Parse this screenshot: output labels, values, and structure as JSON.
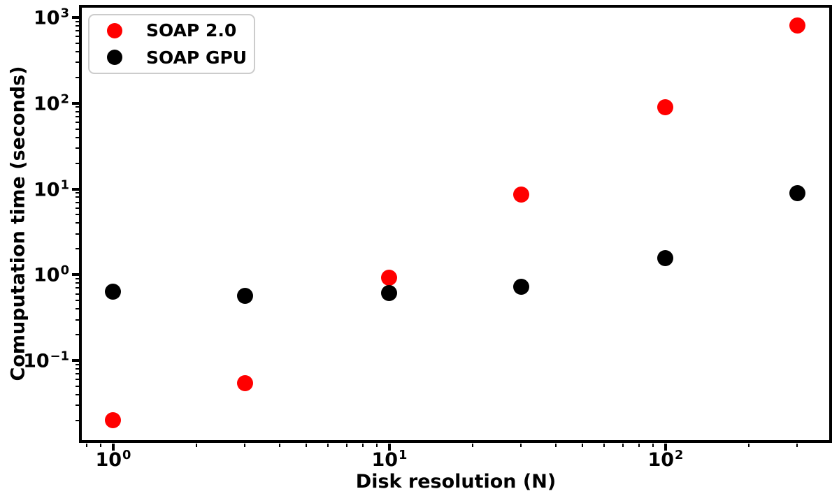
{
  "figure": {
    "background_color": "#ffffff",
    "text_color": "#000000"
  },
  "chart_data": {
    "type": "scatter",
    "title": "",
    "xlabel": "Disk resolution (N)",
    "ylabel": "Comuputation time (seconds)",
    "x_scale": "log",
    "y_scale": "log",
    "grid": false,
    "legend_position": "upper left",
    "x": [
      1,
      3,
      10,
      30,
      100,
      300
    ],
    "series": [
      {
        "name": "SOAP 2.0",
        "color": "#ff0000",
        "values": [
          0.02,
          0.055,
          0.93,
          8.6,
          90,
          800
        ]
      },
      {
        "name": "SOAP GPU",
        "color": "#000000",
        "values": [
          0.64,
          0.57,
          0.61,
          0.72,
          1.55,
          9.0
        ]
      }
    ],
    "xlim": [
      0.756,
      393.6
    ],
    "ylim": [
      0.0116,
      1374
    ],
    "x_ticks": [
      {
        "value": 1,
        "base": "10",
        "exponent": "0"
      },
      {
        "value": 10,
        "base": "10",
        "exponent": "1"
      },
      {
        "value": 100,
        "base": "10",
        "exponent": "2"
      }
    ],
    "y_ticks": [
      {
        "value": 1000,
        "base": "10",
        "exponent": "3"
      },
      {
        "value": 100,
        "base": "10",
        "exponent": "2"
      },
      {
        "value": 10,
        "base": "10",
        "exponent": "1"
      },
      {
        "value": 1,
        "base": "10",
        "exponent": "0"
      },
      {
        "value": 0.1,
        "base": "10",
        "exponent": "−1"
      }
    ]
  }
}
